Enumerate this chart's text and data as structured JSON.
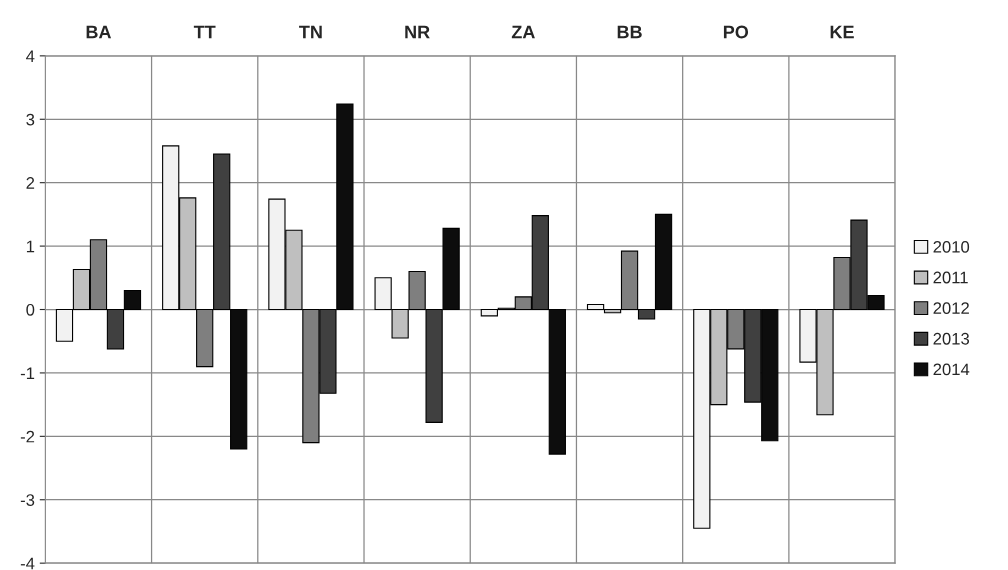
{
  "chart_data": {
    "type": "bar",
    "categories": [
      "BA",
      "TT",
      "TN",
      "NR",
      "ZA",
      "BB",
      "PO",
      "KE"
    ],
    "series": [
      {
        "name": "2010",
        "color": "#f2f2f2",
        "values": [
          -0.5,
          2.58,
          1.74,
          0.5,
          -0.1,
          0.08,
          -3.45,
          -0.83
        ]
      },
      {
        "name": "2011",
        "color": "#bfbfbf",
        "values": [
          0.63,
          1.76,
          1.25,
          -0.45,
          0.02,
          -0.05,
          -1.5,
          -1.66
        ]
      },
      {
        "name": "2012",
        "color": "#7f7f7f",
        "values": [
          1.1,
          -0.9,
          -2.1,
          0.6,
          0.2,
          0.92,
          -0.62,
          0.82
        ]
      },
      {
        "name": "2013",
        "color": "#404040",
        "values": [
          -0.62,
          2.45,
          -1.32,
          -1.78,
          1.48,
          -0.15,
          -1.46,
          1.41
        ]
      },
      {
        "name": "2014",
        "color": "#0d0d0d",
        "values": [
          0.3,
          -2.2,
          3.24,
          1.28,
          -2.28,
          1.5,
          -2.07,
          0.22
        ]
      }
    ],
    "ylim": [
      -4,
      4
    ],
    "yticks": [
      -4,
      -3,
      -2,
      -1,
      0,
      1,
      2,
      3,
      4
    ],
    "grid": true,
    "legend": "right"
  }
}
